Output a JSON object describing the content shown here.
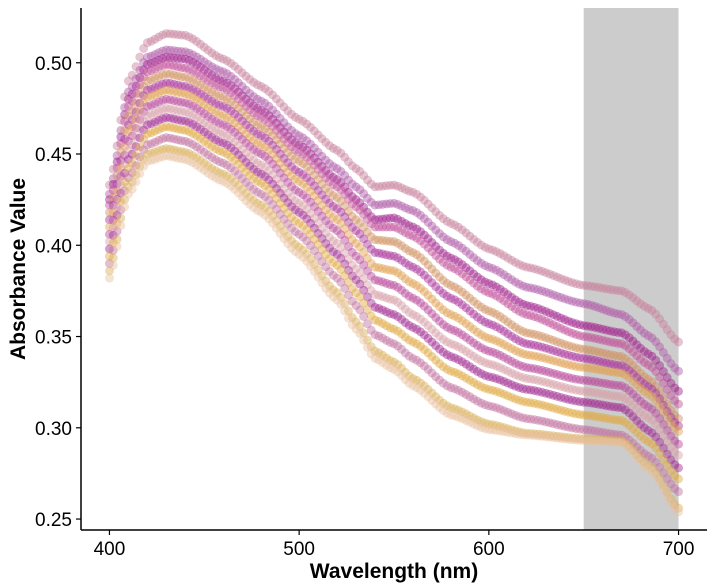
{
  "chart_data": {
    "type": "scatter",
    "title": "",
    "xlabel": "Wavelength (nm)",
    "ylabel": "Absorbance Value",
    "xlim": [
      385,
      715
    ],
    "ylim": [
      0.244,
      0.53
    ],
    "x_ticks": [
      400,
      500,
      600,
      700
    ],
    "y_ticks": [
      0.25,
      0.3,
      0.35,
      0.4,
      0.45,
      0.5
    ],
    "x_tick_labels": [
      "400",
      "500",
      "600",
      "700"
    ],
    "y_tick_labels": [
      "0.25",
      "0.30",
      "0.35",
      "0.40",
      "0.45",
      "0.50"
    ],
    "grid": false,
    "legend": "none",
    "highlight_band": {
      "x_start": 650,
      "x_end": 700,
      "color": "#cccccc"
    },
    "point_step_nm": 2,
    "point_opacity": 0.45,
    "series_color_note": "gradient from purple to gold",
    "series": [
      {
        "color": "#c8809c",
        "points": [
          [
            400,
            0.433
          ],
          [
            410,
            0.49
          ],
          [
            420,
            0.511
          ],
          [
            430,
            0.516
          ],
          [
            440,
            0.515
          ],
          [
            460,
            0.502
          ],
          [
            480,
            0.487
          ],
          [
            500,
            0.469
          ],
          [
            520,
            0.452
          ],
          [
            530,
            0.442
          ],
          [
            540,
            0.432
          ],
          [
            550,
            0.433
          ],
          [
            560,
            0.429
          ],
          [
            580,
            0.412
          ],
          [
            600,
            0.398
          ],
          [
            620,
            0.388
          ],
          [
            650,
            0.378
          ],
          [
            670,
            0.375
          ],
          [
            685,
            0.365
          ],
          [
            700,
            0.347
          ]
        ]
      },
      {
        "color": "#b05aa8",
        "points": [
          [
            400,
            0.428
          ],
          [
            410,
            0.484
          ],
          [
            420,
            0.503
          ],
          [
            430,
            0.507
          ],
          [
            440,
            0.506
          ],
          [
            460,
            0.495
          ],
          [
            480,
            0.479
          ],
          [
            500,
            0.46
          ],
          [
            520,
            0.442
          ],
          [
            530,
            0.432
          ],
          [
            540,
            0.422
          ],
          [
            550,
            0.423
          ],
          [
            560,
            0.419
          ],
          [
            580,
            0.402
          ],
          [
            600,
            0.388
          ],
          [
            620,
            0.377
          ],
          [
            650,
            0.368
          ],
          [
            670,
            0.362
          ],
          [
            685,
            0.35
          ],
          [
            700,
            0.331
          ]
        ]
      },
      {
        "color": "#a0208c",
        "points": [
          [
            400,
            0.425
          ],
          [
            410,
            0.48
          ],
          [
            420,
            0.499
          ],
          [
            430,
            0.503
          ],
          [
            440,
            0.502
          ],
          [
            460,
            0.49
          ],
          [
            480,
            0.474
          ],
          [
            500,
            0.455
          ],
          [
            520,
            0.436
          ],
          [
            530,
            0.425
          ],
          [
            540,
            0.414
          ],
          [
            550,
            0.415
          ],
          [
            560,
            0.41
          ],
          [
            580,
            0.393
          ],
          [
            600,
            0.379
          ],
          [
            620,
            0.367
          ],
          [
            650,
            0.356
          ],
          [
            670,
            0.352
          ],
          [
            685,
            0.34
          ],
          [
            700,
            0.32
          ]
        ]
      },
      {
        "color": "#c05098",
        "points": [
          [
            400,
            0.422
          ],
          [
            410,
            0.476
          ],
          [
            420,
            0.495
          ],
          [
            430,
            0.499
          ],
          [
            440,
            0.497
          ],
          [
            460,
            0.486
          ],
          [
            480,
            0.47
          ],
          [
            500,
            0.451
          ],
          [
            520,
            0.432
          ],
          [
            530,
            0.421
          ],
          [
            540,
            0.41
          ],
          [
            550,
            0.41
          ],
          [
            560,
            0.405
          ],
          [
            580,
            0.388
          ],
          [
            600,
            0.374
          ],
          [
            620,
            0.362
          ],
          [
            650,
            0.35
          ],
          [
            670,
            0.346
          ],
          [
            685,
            0.334
          ],
          [
            700,
            0.313
          ]
        ]
      },
      {
        "color": "#d09060",
        "points": [
          [
            400,
            0.418
          ],
          [
            410,
            0.471
          ],
          [
            420,
            0.49
          ],
          [
            430,
            0.494
          ],
          [
            440,
            0.492
          ],
          [
            460,
            0.481
          ],
          [
            480,
            0.465
          ],
          [
            500,
            0.446
          ],
          [
            520,
            0.426
          ],
          [
            530,
            0.414
          ],
          [
            540,
            0.403
          ],
          [
            550,
            0.402
          ],
          [
            560,
            0.396
          ],
          [
            580,
            0.378
          ],
          [
            600,
            0.364
          ],
          [
            620,
            0.352
          ],
          [
            650,
            0.343
          ],
          [
            670,
            0.339
          ],
          [
            685,
            0.326
          ],
          [
            700,
            0.305
          ]
        ]
      },
      {
        "color": "#a8309a",
        "points": [
          [
            400,
            0.414
          ],
          [
            410,
            0.466
          ],
          [
            420,
            0.485
          ],
          [
            430,
            0.489
          ],
          [
            440,
            0.487
          ],
          [
            460,
            0.476
          ],
          [
            480,
            0.46
          ],
          [
            500,
            0.44
          ],
          [
            520,
            0.42
          ],
          [
            530,
            0.408
          ],
          [
            540,
            0.396
          ],
          [
            550,
            0.394
          ],
          [
            560,
            0.388
          ],
          [
            580,
            0.371
          ],
          [
            600,
            0.357
          ],
          [
            620,
            0.346
          ],
          [
            650,
            0.338
          ],
          [
            670,
            0.334
          ],
          [
            685,
            0.322
          ],
          [
            700,
            0.301
          ]
        ]
      },
      {
        "color": "#e0a050",
        "points": [
          [
            400,
            0.41
          ],
          [
            410,
            0.462
          ],
          [
            420,
            0.481
          ],
          [
            430,
            0.485
          ],
          [
            440,
            0.483
          ],
          [
            460,
            0.471
          ],
          [
            480,
            0.455
          ],
          [
            500,
            0.435
          ],
          [
            520,
            0.414
          ],
          [
            530,
            0.401
          ],
          [
            540,
            0.388
          ],
          [
            550,
            0.386
          ],
          [
            560,
            0.379
          ],
          [
            580,
            0.362
          ],
          [
            600,
            0.349
          ],
          [
            620,
            0.34
          ],
          [
            650,
            0.333
          ],
          [
            670,
            0.33
          ],
          [
            685,
            0.318
          ],
          [
            700,
            0.298
          ]
        ]
      },
      {
        "color": "#b84898",
        "points": [
          [
            400,
            0.406
          ],
          [
            410,
            0.457
          ],
          [
            420,
            0.476
          ],
          [
            430,
            0.48
          ],
          [
            440,
            0.478
          ],
          [
            460,
            0.466
          ],
          [
            480,
            0.45
          ],
          [
            500,
            0.429
          ],
          [
            520,
            0.408
          ],
          [
            530,
            0.394
          ],
          [
            540,
            0.381
          ],
          [
            550,
            0.378
          ],
          [
            560,
            0.371
          ],
          [
            580,
            0.354
          ],
          [
            600,
            0.342
          ],
          [
            620,
            0.333
          ],
          [
            650,
            0.326
          ],
          [
            670,
            0.323
          ],
          [
            685,
            0.311
          ],
          [
            700,
            0.291
          ]
        ]
      },
      {
        "color": "#d8a0a8",
        "points": [
          [
            400,
            0.402
          ],
          [
            410,
            0.452
          ],
          [
            420,
            0.471
          ],
          [
            430,
            0.475
          ],
          [
            440,
            0.473
          ],
          [
            460,
            0.461
          ],
          [
            480,
            0.444
          ],
          [
            500,
            0.423
          ],
          [
            520,
            0.401
          ],
          [
            530,
            0.387
          ],
          [
            540,
            0.373
          ],
          [
            550,
            0.37
          ],
          [
            560,
            0.362
          ],
          [
            580,
            0.346
          ],
          [
            600,
            0.335
          ],
          [
            620,
            0.327
          ],
          [
            650,
            0.32
          ],
          [
            670,
            0.317
          ],
          [
            685,
            0.305
          ],
          [
            700,
            0.285
          ]
        ]
      },
      {
        "color": "#a02890",
        "points": [
          [
            400,
            0.398
          ],
          [
            410,
            0.447
          ],
          [
            420,
            0.466
          ],
          [
            430,
            0.47
          ],
          [
            440,
            0.468
          ],
          [
            460,
            0.456
          ],
          [
            480,
            0.439
          ],
          [
            500,
            0.418
          ],
          [
            520,
            0.395
          ],
          [
            530,
            0.381
          ],
          [
            540,
            0.366
          ],
          [
            550,
            0.362
          ],
          [
            560,
            0.355
          ],
          [
            580,
            0.339
          ],
          [
            600,
            0.328
          ],
          [
            620,
            0.321
          ],
          [
            650,
            0.314
          ],
          [
            670,
            0.311
          ],
          [
            685,
            0.298
          ],
          [
            700,
            0.278
          ]
        ]
      },
      {
        "color": "#e0a840",
        "points": [
          [
            400,
            0.394
          ],
          [
            410,
            0.442
          ],
          [
            420,
            0.461
          ],
          [
            430,
            0.465
          ],
          [
            440,
            0.463
          ],
          [
            460,
            0.451
          ],
          [
            480,
            0.434
          ],
          [
            500,
            0.412
          ],
          [
            520,
            0.389
          ],
          [
            530,
            0.374
          ],
          [
            540,
            0.359
          ],
          [
            550,
            0.354
          ],
          [
            560,
            0.347
          ],
          [
            580,
            0.331
          ],
          [
            600,
            0.321
          ],
          [
            620,
            0.314
          ],
          [
            650,
            0.307
          ],
          [
            670,
            0.304
          ],
          [
            685,
            0.292
          ],
          [
            700,
            0.272
          ]
        ]
      },
      {
        "color": "#c070a0",
        "points": [
          [
            400,
            0.39
          ],
          [
            410,
            0.437
          ],
          [
            420,
            0.455
          ],
          [
            430,
            0.459
          ],
          [
            440,
            0.457
          ],
          [
            460,
            0.445
          ],
          [
            480,
            0.428
          ],
          [
            500,
            0.406
          ],
          [
            520,
            0.382
          ],
          [
            530,
            0.367
          ],
          [
            540,
            0.351
          ],
          [
            550,
            0.346
          ],
          [
            560,
            0.338
          ],
          [
            580,
            0.322
          ],
          [
            600,
            0.312
          ],
          [
            620,
            0.305
          ],
          [
            650,
            0.299
          ],
          [
            670,
            0.296
          ],
          [
            685,
            0.284
          ],
          [
            700,
            0.265
          ]
        ]
      },
      {
        "color": "#dab058",
        "points": [
          [
            400,
            0.386
          ],
          [
            410,
            0.432
          ],
          [
            420,
            0.45
          ],
          [
            430,
            0.453
          ],
          [
            440,
            0.451
          ],
          [
            460,
            0.439
          ],
          [
            480,
            0.422
          ],
          [
            500,
            0.399
          ],
          [
            520,
            0.374
          ],
          [
            530,
            0.358
          ],
          [
            540,
            0.342
          ],
          [
            550,
            0.336
          ],
          [
            560,
            0.327
          ],
          [
            580,
            0.311
          ],
          [
            600,
            0.302
          ],
          [
            620,
            0.297
          ],
          [
            650,
            0.294
          ],
          [
            670,
            0.293
          ],
          [
            685,
            0.279
          ],
          [
            700,
            0.256
          ]
        ]
      },
      {
        "color": "#e8c0a0",
        "points": [
          [
            400,
            0.382
          ],
          [
            410,
            0.428
          ],
          [
            420,
            0.446
          ],
          [
            430,
            0.449
          ],
          [
            440,
            0.447
          ],
          [
            460,
            0.435
          ],
          [
            480,
            0.418
          ],
          [
            500,
            0.395
          ],
          [
            520,
            0.37
          ],
          [
            530,
            0.354
          ],
          [
            540,
            0.338
          ],
          [
            550,
            0.332
          ],
          [
            560,
            0.323
          ],
          [
            580,
            0.307
          ],
          [
            600,
            0.299
          ],
          [
            620,
            0.296
          ],
          [
            650,
            0.293
          ],
          [
            670,
            0.292
          ],
          [
            685,
            0.277
          ],
          [
            700,
            0.254
          ]
        ]
      }
    ]
  }
}
